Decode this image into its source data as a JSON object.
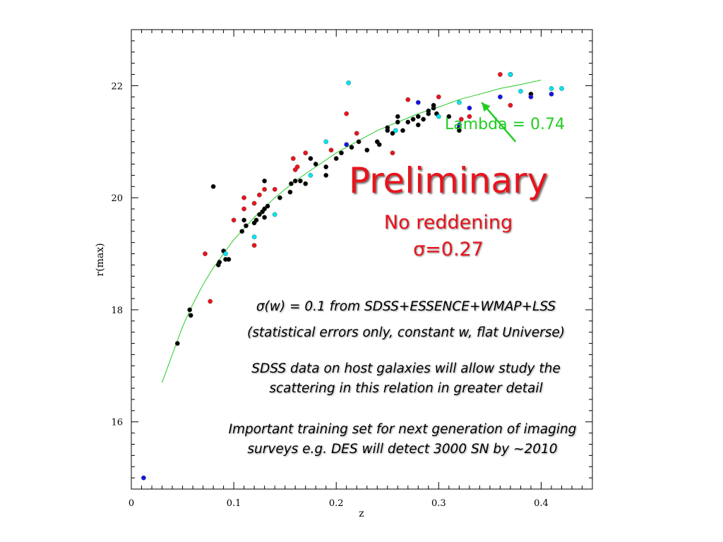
{
  "chart_data": {
    "type": "scatter",
    "xlabel": "z",
    "ylabel": "r(max)",
    "xlim": [
      0,
      0.45
    ],
    "ylim": [
      14.8,
      23.0
    ],
    "x_ticks": [
      0,
      0.1,
      0.2,
      0.3,
      0.4
    ],
    "x_tick_labels": [
      "0",
      "0.1",
      "0.2",
      "0.3",
      "0.4"
    ],
    "y_ticks": [
      16,
      18,
      20,
      22
    ],
    "y_tick_labels": [
      "16",
      "18",
      "20",
      "22"
    ],
    "grid": false,
    "colors": {
      "black": "#000000",
      "red": "#e8141c",
      "blue": "#1414e0",
      "cyan": "#00e5ee",
      "fit": "#22cc22"
    },
    "series": [
      {
        "color": "black",
        "points": [
          [
            0.045,
            17.4
          ],
          [
            0.057,
            18.0
          ],
          [
            0.058,
            17.9
          ],
          [
            0.08,
            20.2
          ],
          [
            0.085,
            18.8
          ],
          [
            0.086,
            18.85
          ],
          [
            0.09,
            19.05
          ],
          [
            0.092,
            18.9
          ],
          [
            0.095,
            18.9
          ],
          [
            0.108,
            19.4
          ],
          [
            0.11,
            19.6
          ],
          [
            0.112,
            19.5
          ],
          [
            0.12,
            19.55
          ],
          [
            0.122,
            19.6
          ],
          [
            0.125,
            19.7
          ],
          [
            0.128,
            19.75
          ],
          [
            0.13,
            19.8
          ],
          [
            0.13,
            20.3
          ],
          [
            0.13,
            19.65
          ],
          [
            0.133,
            19.85
          ],
          [
            0.145,
            20.0
          ],
          [
            0.155,
            20.1
          ],
          [
            0.156,
            20.25
          ],
          [
            0.16,
            20.3
          ],
          [
            0.165,
            20.3
          ],
          [
            0.17,
            20.25
          ],
          [
            0.175,
            20.7
          ],
          [
            0.18,
            20.6
          ],
          [
            0.19,
            20.4
          ],
          [
            0.19,
            20.55
          ],
          [
            0.2,
            20.7
          ],
          [
            0.205,
            20.8
          ],
          [
            0.215,
            20.9
          ],
          [
            0.222,
            21.0
          ],
          [
            0.23,
            20.85
          ],
          [
            0.24,
            21.0
          ],
          [
            0.242,
            20.95
          ],
          [
            0.25,
            21.25
          ],
          [
            0.25,
            21.2
          ],
          [
            0.255,
            21.15
          ],
          [
            0.26,
            21.45
          ],
          [
            0.26,
            21.35
          ],
          [
            0.265,
            21.2
          ],
          [
            0.27,
            21.35
          ],
          [
            0.275,
            21.4
          ],
          [
            0.28,
            21.3
          ],
          [
            0.28,
            21.45
          ],
          [
            0.285,
            21.4
          ],
          [
            0.29,
            21.5
          ],
          [
            0.29,
            21.55
          ],
          [
            0.295,
            21.6
          ],
          [
            0.295,
            21.65
          ],
          [
            0.298,
            21.5
          ],
          [
            0.31,
            21.45
          ],
          [
            0.32,
            21.25
          ],
          [
            0.32,
            21.2
          ],
          [
            0.37,
            22.2
          ],
          [
            0.39,
            21.85
          ]
        ]
      },
      {
        "color": "red",
        "points": [
          [
            0.072,
            19.0
          ],
          [
            0.077,
            18.15
          ],
          [
            0.1,
            19.6
          ],
          [
            0.11,
            19.8
          ],
          [
            0.11,
            20.0
          ],
          [
            0.12,
            19.9
          ],
          [
            0.12,
            19.15
          ],
          [
            0.125,
            20.05
          ],
          [
            0.13,
            20.15
          ],
          [
            0.14,
            20.15
          ],
          [
            0.158,
            20.7
          ],
          [
            0.16,
            20.5
          ],
          [
            0.162,
            20.55
          ],
          [
            0.17,
            20.8
          ],
          [
            0.195,
            20.85
          ],
          [
            0.21,
            21.5
          ],
          [
            0.22,
            21.15
          ],
          [
            0.255,
            20.8
          ],
          [
            0.27,
            21.75
          ],
          [
            0.3,
            21.8
          ],
          [
            0.322,
            21.4
          ],
          [
            0.33,
            21.45
          ],
          [
            0.36,
            22.2
          ],
          [
            0.37,
            21.65
          ]
        ]
      },
      {
        "color": "blue",
        "points": [
          [
            0.012,
            15.0
          ],
          [
            0.21,
            20.95
          ],
          [
            0.28,
            21.7
          ],
          [
            0.32,
            21.3
          ],
          [
            0.33,
            21.6
          ],
          [
            0.36,
            21.8
          ],
          [
            0.37,
            22.2
          ],
          [
            0.39,
            21.8
          ],
          [
            0.41,
            21.85
          ]
        ]
      },
      {
        "color": "cyan",
        "points": [
          [
            0.092,
            19.0
          ],
          [
            0.12,
            19.3
          ],
          [
            0.14,
            19.7
          ],
          [
            0.175,
            20.4
          ],
          [
            0.19,
            21.0
          ],
          [
            0.212,
            22.05
          ],
          [
            0.258,
            21.2
          ],
          [
            0.3,
            21.45
          ],
          [
            0.32,
            21.7
          ],
          [
            0.37,
            22.2
          ],
          [
            0.38,
            21.9
          ],
          [
            0.41,
            21.95
          ],
          [
            0.42,
            21.95
          ]
        ]
      }
    ],
    "fit_line": {
      "name": "Lambda = 0.74",
      "points": [
        [
          0.03,
          16.7
        ],
        [
          0.04,
          17.2
        ],
        [
          0.05,
          17.7
        ],
        [
          0.06,
          18.1
        ],
        [
          0.07,
          18.45
        ],
        [
          0.08,
          18.75
        ],
        [
          0.09,
          19.0
        ],
        [
          0.1,
          19.25
        ],
        [
          0.12,
          19.65
        ],
        [
          0.14,
          20.0
        ],
        [
          0.16,
          20.3
        ],
        [
          0.18,
          20.55
        ],
        [
          0.2,
          20.8
        ],
        [
          0.22,
          21.0
        ],
        [
          0.24,
          21.2
        ],
        [
          0.26,
          21.35
        ],
        [
          0.28,
          21.5
        ],
        [
          0.3,
          21.62
        ],
        [
          0.32,
          21.75
        ],
        [
          0.34,
          21.85
        ],
        [
          0.36,
          21.95
        ],
        [
          0.38,
          22.02
        ],
        [
          0.4,
          22.1
        ]
      ]
    },
    "annotation_arrow": {
      "from": [
        0.375,
        21.0
      ],
      "to": [
        0.342,
        21.7
      ]
    }
  },
  "overlay": {
    "preliminary": "Preliminary",
    "no_reddening": "No reddening",
    "sigma_value": "σ=0.27",
    "note_sigma_w": "σ(w) = 0.1 from SDSS+ESSENCE+WMAP+LSS",
    "note_errors": "(statistical errors only, constant w, flat Universe)",
    "note_sdss": "SDSS data on host galaxies will allow study the scattering in this relation in greater detail",
    "note_training": "Important training set for next generation of imaging surveys e.g. DES will detect 3000 SN by ~2010"
  }
}
